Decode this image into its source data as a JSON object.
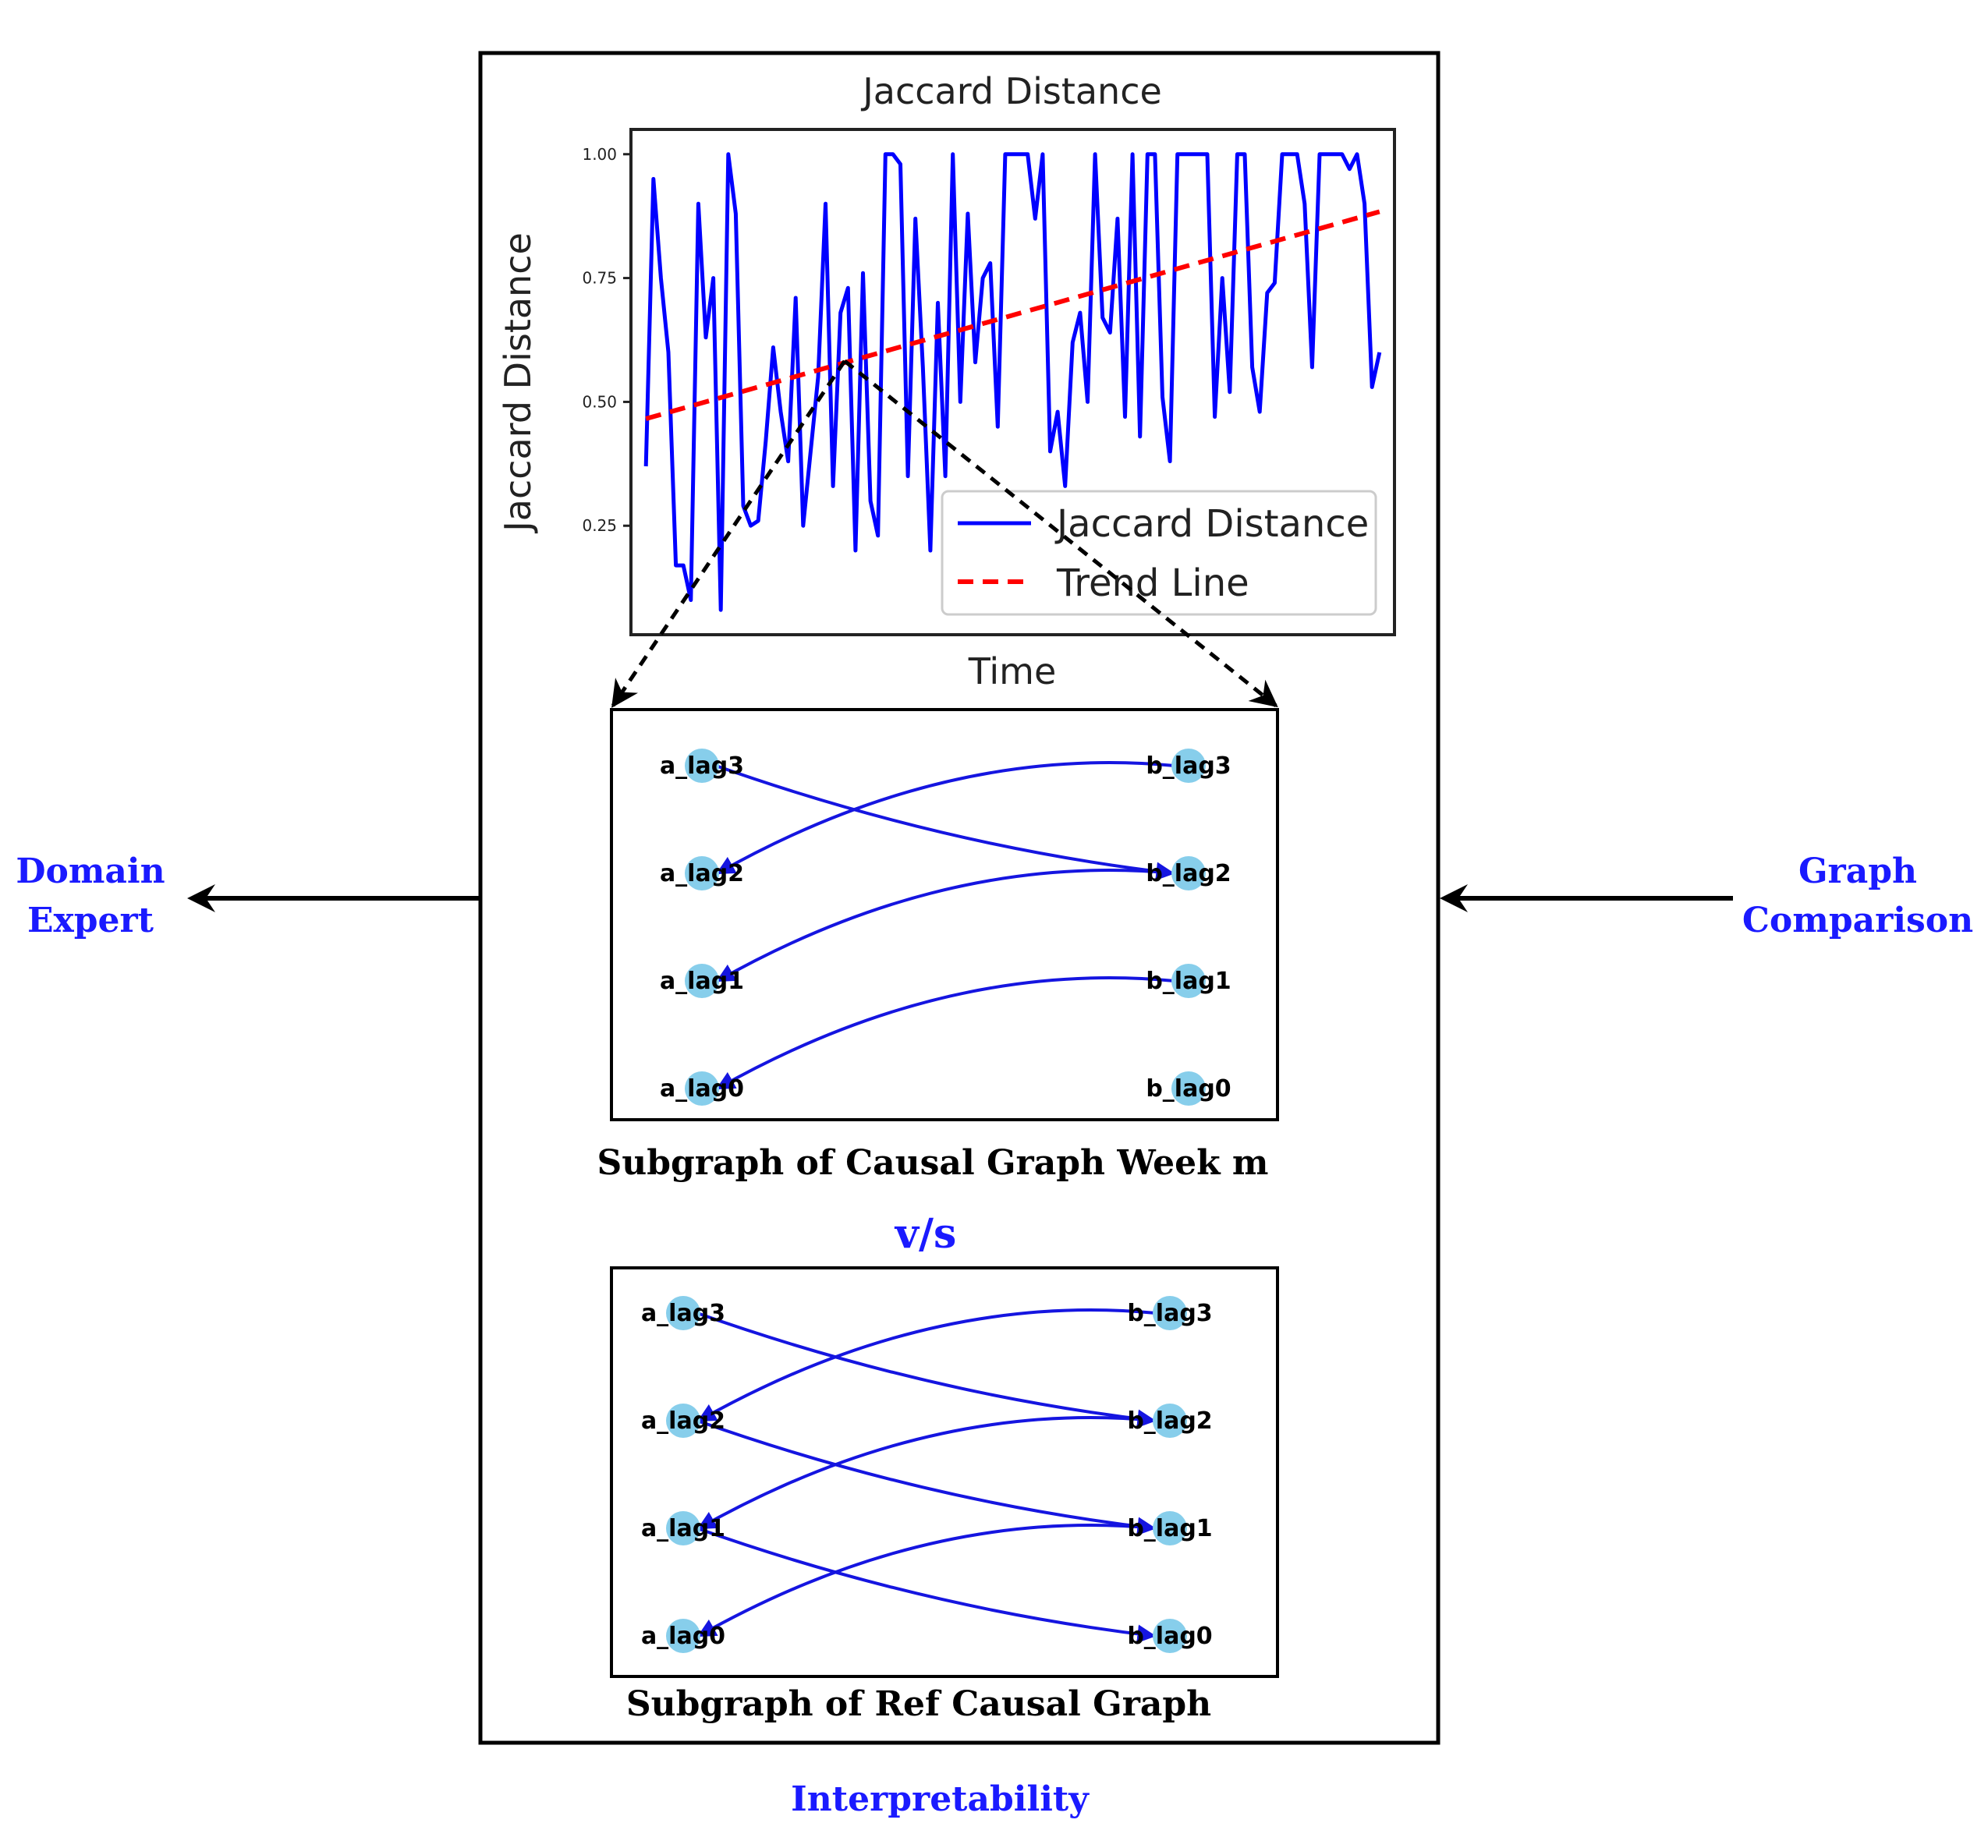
{
  "side_labels": {
    "left": [
      "Domain",
      "Expert"
    ],
    "right": [
      "Graph",
      "Comparison"
    ],
    "bottom": "Interpretability"
  },
  "colors": {
    "label_blue": "#1a1aff",
    "series_blue": "#0000ff",
    "trend_red": "#ff0000",
    "node_fill": "#87ceeb",
    "edge_blue": "#1515e0"
  },
  "chart_data": {
    "type": "line",
    "title": "Jaccard Distance",
    "xlabel": "Time",
    "ylabel": "Jaccard Distance",
    "ylim": [
      0.03,
      1.05
    ],
    "xlim": [
      -3,
      150
    ],
    "yticks": [
      0.25,
      0.5,
      0.75,
      1.0
    ],
    "ytick_labels": [
      "0.25",
      "0.50",
      "0.75",
      "1.00"
    ],
    "legend": [
      "Jaccard Distance",
      "Trend Line"
    ],
    "legend_position": "lower-right",
    "series": [
      {
        "name": "Jaccard Distance",
        "values": [
          0.37,
          0.95,
          0.75,
          0.6,
          0.17,
          0.17,
          0.1,
          0.9,
          0.63,
          0.75,
          0.08,
          1.0,
          0.88,
          0.29,
          0.25,
          0.26,
          0.42,
          0.61,
          0.48,
          0.38,
          0.71,
          0.25,
          0.4,
          0.55,
          0.9,
          0.33,
          0.68,
          0.73,
          0.2,
          0.76,
          0.3,
          0.23,
          1.0,
          1.0,
          0.98,
          0.35,
          0.87,
          0.57,
          0.2,
          0.7,
          0.35,
          1.0,
          0.5,
          0.88,
          0.58,
          0.75,
          0.78,
          0.45,
          1.0,
          1.0,
          1.0,
          1.0,
          0.87,
          1.0,
          0.4,
          0.48,
          0.33,
          0.62,
          0.68,
          0.5,
          1.0,
          0.67,
          0.64,
          0.87,
          0.47,
          1.0,
          0.43,
          1.0,
          1.0,
          0.51,
          0.38,
          1.0,
          1.0,
          1.0,
          1.0,
          1.0,
          0.47,
          0.75,
          0.52,
          1.0,
          1.0,
          0.57,
          0.48,
          0.72,
          0.74,
          1.0,
          1.0,
          1.0,
          0.9,
          0.57,
          1.0,
          1.0,
          1.0,
          1.0,
          0.97,
          1.0,
          0.9,
          0.53,
          0.6
        ],
        "trend": [
          0.466,
          0.884
        ]
      },
      {
        "name": "Trend Line",
        "values": [
          0.466,
          0.884
        ]
      }
    ]
  },
  "graph_week": {
    "caption": "Subgraph of Causal Graph Week m",
    "left_nodes": [
      "a_lag3",
      "a_lag2",
      "a_lag1",
      "a_lag0"
    ],
    "right_nodes": [
      "b_lag3",
      "b_lag2",
      "b_lag1",
      "b_lag0"
    ],
    "edges": [
      [
        "a_lag3",
        "b_lag2"
      ],
      [
        "b_lag3",
        "a_lag2"
      ],
      [
        "b_lag2",
        "a_lag1"
      ],
      [
        "b_lag1",
        "a_lag0"
      ]
    ]
  },
  "versus": "v/s",
  "graph_ref": {
    "caption": "Subgraph of Ref Causal Graph",
    "left_nodes": [
      "a_lag3",
      "a_lag2",
      "a_lag1",
      "a_lag0"
    ],
    "right_nodes": [
      "b_lag3",
      "b_lag2",
      "b_lag1",
      "b_lag0"
    ],
    "edges": [
      [
        "a_lag3",
        "b_lag2"
      ],
      [
        "b_lag3",
        "a_lag2"
      ],
      [
        "a_lag2",
        "b_lag1"
      ],
      [
        "b_lag2",
        "a_lag1"
      ],
      [
        "a_lag1",
        "b_lag0"
      ],
      [
        "b_lag1",
        "a_lag0"
      ]
    ]
  }
}
